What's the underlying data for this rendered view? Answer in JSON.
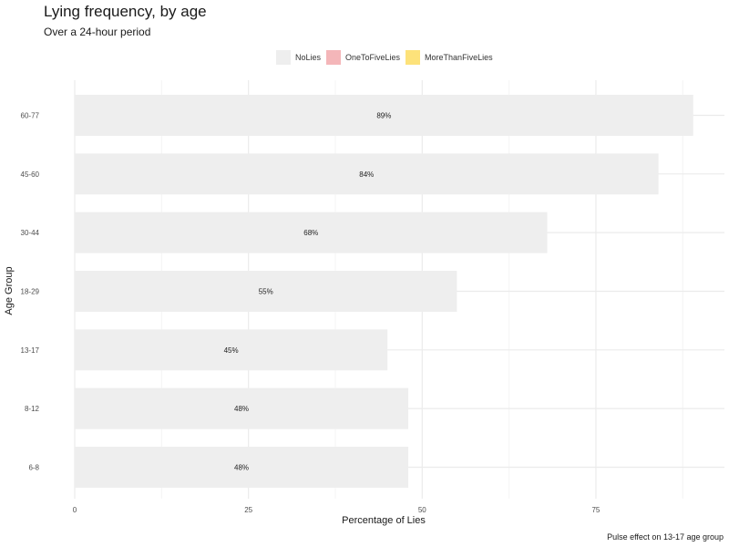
{
  "chart_data": {
    "type": "bar",
    "orientation": "horizontal",
    "title": "Lying frequency, by age",
    "subtitle": "Over a 24-hour period",
    "xlabel": "Percentage of Lies",
    "ylabel": "Age Group",
    "caption": "Pulse effect on 13-17 age group",
    "categories": [
      "6-8",
      "8-12",
      "13-17",
      "18-29",
      "30-44",
      "45-60",
      "60-77"
    ],
    "series": [
      {
        "name": "NoLies",
        "color": "#eeeeee",
        "values": [
          48,
          48,
          45,
          55,
          68,
          84,
          89
        ]
      }
    ],
    "data_labels": [
      "48%",
      "48%",
      "45%",
      "55%",
      "68%",
      "84%",
      "89%"
    ],
    "xlim": [
      0,
      90
    ],
    "x_ticks": [
      0,
      25,
      50,
      75
    ],
    "x_tick_labels": [
      "0",
      "25",
      "50",
      "75"
    ],
    "grid": true,
    "legend_position": "top",
    "legend": [
      {
        "label": "NoLies",
        "color": "#eeeeee"
      },
      {
        "label": "OneToFiveLies",
        "color": "#f4b6b9"
      },
      {
        "label": "MoreThanFiveLies",
        "color": "#fde27a"
      }
    ]
  }
}
